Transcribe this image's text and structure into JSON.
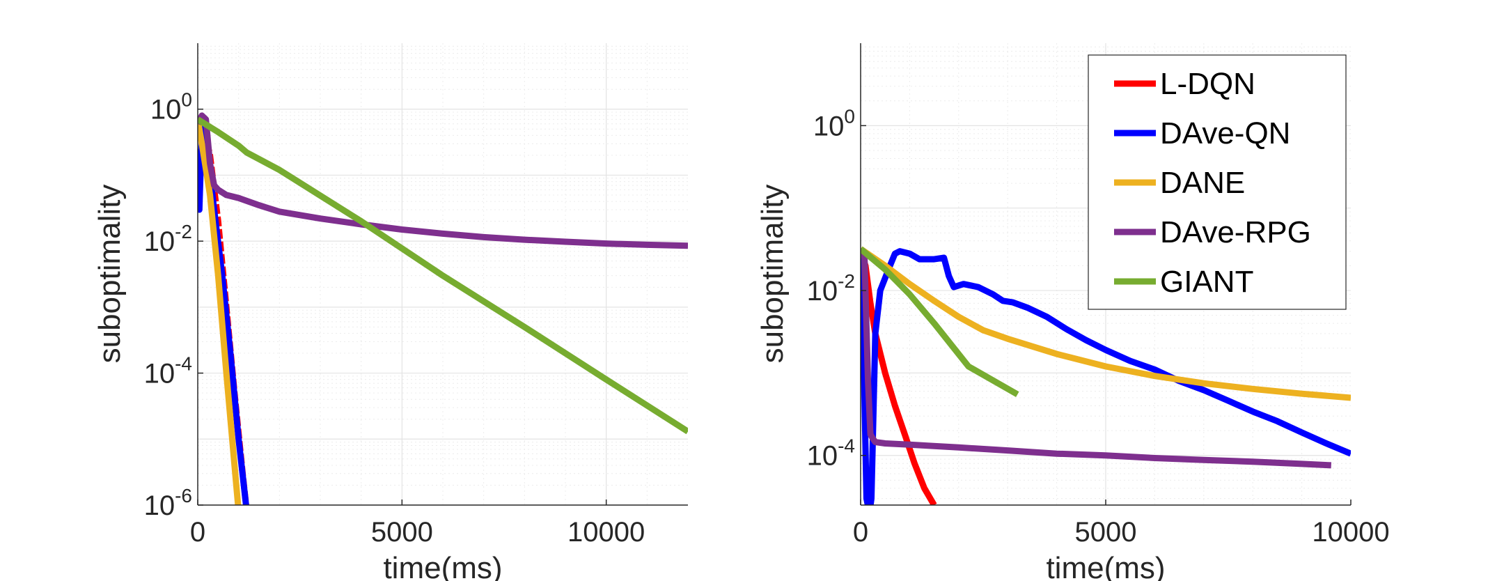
{
  "chart_data": [
    {
      "type": "line",
      "xlabel": "time(ms)",
      "ylabel": "suboptimality",
      "yscale": "log",
      "xlim": [
        0,
        12000
      ],
      "ylim": [
        1e-06,
        10
      ],
      "xticks": [
        0,
        5000,
        10000
      ],
      "xtick_labels": [
        "0",
        "5000",
        "10000"
      ],
      "yticks": [
        1e-06,
        0.0001,
        0.01,
        1
      ],
      "ytick_labels": [
        [
          "10",
          "-6"
        ],
        [
          "10",
          "-4"
        ],
        [
          "10",
          "-2"
        ],
        [
          "10",
          "0"
        ]
      ],
      "grid": true,
      "series": [
        {
          "name": "L-DQN",
          "color": "#ff0000",
          "dashed": true,
          "x": [
            0,
            150,
            300,
            500,
            700,
            900,
            1100,
            1200
          ],
          "y": [
            0.7,
            0.5,
            0.2,
            0.02,
            0.001,
            5e-05,
            3e-06,
            8e-07
          ]
        },
        {
          "name": "DAve-QN",
          "color": "#0000ff",
          "x": [
            0,
            40,
            80,
            130,
            180,
            250,
            400,
            600,
            800,
            1000,
            1200
          ],
          "y": [
            0.25,
            0.03,
            0.2,
            0.6,
            0.5,
            0.2,
            0.03,
            0.003,
            0.0002,
            1e-05,
            8e-07
          ]
        },
        {
          "name": "DANE",
          "color": "#edb120",
          "x": [
            0,
            100,
            300,
            500,
            700,
            900,
            1000
          ],
          "y": [
            0.7,
            0.3,
            0.05,
            0.003,
            0.0001,
            4e-06,
            8e-07
          ]
        },
        {
          "name": "DAve-RPG",
          "color": "#7e2f8e",
          "x": [
            0,
            100,
            200,
            300,
            400,
            500,
            700,
            1000,
            1500,
            2000,
            3000,
            4000,
            5000,
            6000,
            7000,
            8000,
            9000,
            10000,
            11000,
            12000
          ],
          "y": [
            0.6,
            0.8,
            0.7,
            0.15,
            0.07,
            0.06,
            0.05,
            0.045,
            0.035,
            0.028,
            0.022,
            0.018,
            0.015,
            0.013,
            0.0115,
            0.0105,
            0.0098,
            0.0092,
            0.0088,
            0.0085
          ]
        },
        {
          "name": "GIANT",
          "color": "#77ac30",
          "x": [
            0,
            500,
            1000,
            1200,
            2000,
            4000,
            6000,
            8000,
            10000,
            12000
          ],
          "y": [
            0.7,
            0.45,
            0.28,
            0.22,
            0.12,
            0.02,
            0.003,
            0.0005,
            8e-05,
            1.3e-05
          ]
        }
      ]
    },
    {
      "type": "line",
      "xlabel": "time(ms)",
      "ylabel": "suboptimality",
      "yscale": "log",
      "xlim": [
        0,
        10000
      ],
      "ylim": [
        2.5e-05,
        10
      ],
      "xticks": [
        0,
        5000,
        10000
      ],
      "xtick_labels": [
        "0",
        "5000",
        "10000"
      ],
      "yticks": [
        0.0001,
        0.01,
        1
      ],
      "ytick_labels": [
        [
          "10",
          "-4"
        ],
        [
          "10",
          "-2"
        ],
        [
          "10",
          "0"
        ]
      ],
      "grid": true,
      "legend": "top-right",
      "series": [
        {
          "name": "L-DQN",
          "color": "#ff0000",
          "x": [
            0,
            100,
            200,
            300,
            500,
            700,
            900,
            1100,
            1300,
            1500
          ],
          "y": [
            0.03,
            0.02,
            0.007,
            0.003,
            0.001,
            0.0004,
            0.00018,
            8e-05,
            4e-05,
            2.5e-05
          ]
        },
        {
          "name": "DAve-QN",
          "color": "#0000ff",
          "x": [
            0,
            60,
            120,
            180,
            220,
            300,
            400,
            600,
            700,
            800,
            1000,
            1200,
            1300,
            1500,
            1700,
            1800,
            1900,
            2100,
            2400,
            2700,
            2900,
            3100,
            3400,
            3800,
            4200,
            4600,
            5000,
            5500,
            6000,
            6500,
            7000,
            7500,
            8000,
            8500,
            9000,
            9500,
            10000
          ],
          "y": [
            0.03,
            0.002,
            3e-05,
            2e-05,
            3e-05,
            0.003,
            0.01,
            0.02,
            0.028,
            0.03,
            0.028,
            0.024,
            0.024,
            0.024,
            0.025,
            0.015,
            0.011,
            0.012,
            0.011,
            0.009,
            0.0075,
            0.0072,
            0.0062,
            0.0048,
            0.0034,
            0.0025,
            0.0019,
            0.0014,
            0.0011,
            0.0008,
            0.00062,
            0.00046,
            0.00034,
            0.00026,
            0.00019,
            0.00014,
            0.000105
          ]
        },
        {
          "name": "DANE",
          "color": "#edb120",
          "x": [
            0,
            500,
            1000,
            1500,
            2000,
            2500,
            3000,
            4000,
            5000,
            6000,
            7000,
            8000,
            9000,
            10000
          ],
          "y": [
            0.032,
            0.02,
            0.012,
            0.0075,
            0.0048,
            0.0033,
            0.0026,
            0.0017,
            0.0012,
            0.00092,
            0.00075,
            0.00064,
            0.00056,
            0.0005
          ]
        },
        {
          "name": "DAve-RPG",
          "color": "#7e2f8e",
          "x": [
            0,
            80,
            150,
            200,
            250,
            300,
            500,
            1000,
            2000,
            3000,
            4000,
            5000,
            6000,
            7000,
            8000,
            9000,
            9600
          ],
          "y": [
            0.03,
            0.025,
            0.0008,
            0.00018,
            0.00016,
            0.000145,
            0.00014,
            0.000135,
            0.000125,
            0.000115,
            0.000105,
            0.0001,
            9.3e-05,
            8.8e-05,
            8.4e-05,
            7.9e-05,
            7.6e-05
          ]
        },
        {
          "name": "GIANT",
          "color": "#77ac30",
          "x": [
            0,
            500,
            1000,
            1500,
            2200,
            3200
          ],
          "y": [
            0.032,
            0.018,
            0.009,
            0.004,
            0.0012,
            0.00055
          ]
        }
      ]
    }
  ]
}
